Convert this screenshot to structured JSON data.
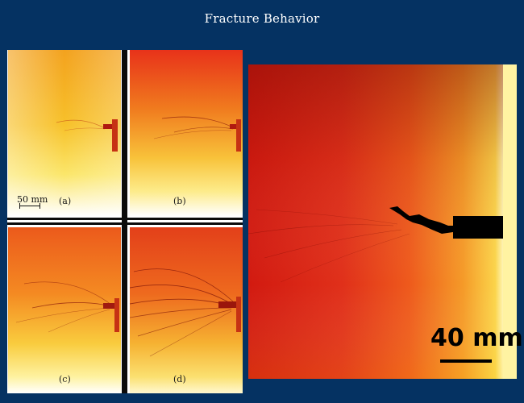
{
  "slide": {
    "title": "Fracture Behavior"
  },
  "panels": {
    "scale_small": "50 mm",
    "labels": [
      "(a)",
      "(b)",
      "(c)",
      "(d)"
    ],
    "scale_large": "40 mm"
  }
}
